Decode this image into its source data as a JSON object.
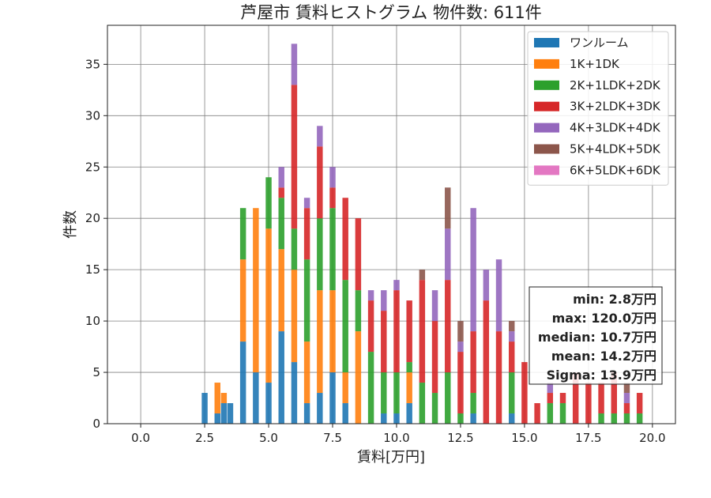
{
  "chart_data": {
    "type": "bar",
    "stacked": true,
    "title": "芦屋市 賃料ヒストグラム 物件数: 611件",
    "xlabel": "賃料[万円]",
    "ylabel": "件数",
    "xlim": [
      -1.3,
      20.9
    ],
    "ylim": [
      0,
      38.8
    ],
    "xticks": [
      0.0,
      2.5,
      5.0,
      7.5,
      10.0,
      12.5,
      15.0,
      17.5,
      20.0
    ],
    "xtick_labels": [
      "0.0",
      "2.5",
      "5.0",
      "7.5",
      "10.0",
      "12.5",
      "15.0",
      "17.5",
      "20.0"
    ],
    "yticks": [
      0,
      5,
      10,
      15,
      20,
      25,
      30,
      35
    ],
    "ytick_labels": [
      "0",
      "5",
      "10",
      "15",
      "20",
      "25",
      "30",
      "35"
    ],
    "grid": true,
    "legend_position": "top-right",
    "bin_width": 0.25,
    "x": [
      2.5,
      3.0,
      3.25,
      3.5,
      4.0,
      4.5,
      5.0,
      5.5,
      6.0,
      6.5,
      7.0,
      7.5,
      8.0,
      8.5,
      9.0,
      9.5,
      10.0,
      10.5,
      11.0,
      11.5,
      12.0,
      12.5,
      13.0,
      13.5,
      14.0,
      14.5,
      15.0,
      15.5,
      16.0,
      16.5,
      17.0,
      17.5,
      18.0,
      18.5,
      19.0,
      19.5
    ],
    "series": [
      {
        "name": "ワンルーム",
        "color": "#1f77b4",
        "values": [
          3,
          1,
          2,
          2,
          8,
          5,
          4,
          9,
          6,
          2,
          3,
          5,
          2,
          0,
          0,
          1,
          1,
          2,
          0,
          0,
          0,
          0,
          1,
          0,
          0,
          1,
          0,
          0,
          0,
          0,
          0,
          0,
          0,
          0,
          0,
          0
        ]
      },
      {
        "name": "1K+1DK",
        "color": "#ff7f0e",
        "values": [
          0,
          3,
          1,
          0,
          8,
          16,
          15,
          8,
          9,
          6,
          10,
          8,
          3,
          9,
          0,
          0,
          0,
          3,
          0,
          0,
          0,
          0,
          0,
          0,
          0,
          0,
          0,
          0,
          0,
          0,
          0,
          0,
          0,
          0,
          0,
          0
        ]
      },
      {
        "name": "2K+1LDK+2DK",
        "color": "#2ca02c",
        "values": [
          0,
          0,
          0,
          0,
          5,
          0,
          5,
          5,
          4,
          8,
          7,
          8,
          9,
          4,
          7,
          4,
          4,
          1,
          4,
          3,
          5,
          1,
          2,
          0,
          0,
          4,
          0,
          0,
          2,
          2,
          0,
          0,
          1,
          1,
          1,
          1
        ]
      },
      {
        "name": "3K+2LDK+3DK",
        "color": "#d62728",
        "values": [
          0,
          0,
          0,
          0,
          0,
          0,
          0,
          1,
          14,
          5,
          7,
          2,
          8,
          7,
          5,
          6,
          8,
          6,
          10,
          7,
          9,
          6,
          6,
          12,
          9,
          3,
          6,
          2,
          1,
          1,
          5,
          4,
          3,
          4,
          1,
          2
        ]
      },
      {
        "name": "4K+3LDK+4DK",
        "color": "#9467bd",
        "values": [
          0,
          0,
          0,
          0,
          0,
          0,
          0,
          2,
          4,
          1,
          2,
          2,
          0,
          0,
          1,
          2,
          1,
          0,
          0,
          3,
          5,
          1,
          12,
          3,
          7,
          1,
          0,
          0,
          1,
          0,
          0,
          0,
          0,
          0,
          1,
          0
        ]
      },
      {
        "name": "5K+4LDK+5DK",
        "color": "#8c564b",
        "values": [
          0,
          0,
          0,
          0,
          0,
          0,
          0,
          0,
          0,
          0,
          0,
          0,
          0,
          0,
          0,
          0,
          0,
          0,
          1,
          0,
          4,
          2,
          0,
          0,
          0,
          1,
          0,
          0,
          0,
          0,
          0,
          0,
          0,
          0,
          1,
          0
        ]
      },
      {
        "name": "6K+5LDK+6DK",
        "color": "#e377c2",
        "values": [
          0,
          0,
          0,
          0,
          0,
          0,
          0,
          0,
          0,
          0,
          0,
          0,
          0,
          0,
          0,
          0,
          0,
          0,
          0,
          0,
          0,
          0,
          0,
          0,
          0,
          0,
          0,
          0,
          0,
          0,
          0,
          0,
          0,
          0,
          0,
          0
        ]
      }
    ],
    "annotation_lines": [
      "min: 2.8万円",
      "max: 120.0万円",
      "median: 10.7万円",
      "mean: 14.2万円",
      "Sigma: 13.9万円"
    ]
  }
}
